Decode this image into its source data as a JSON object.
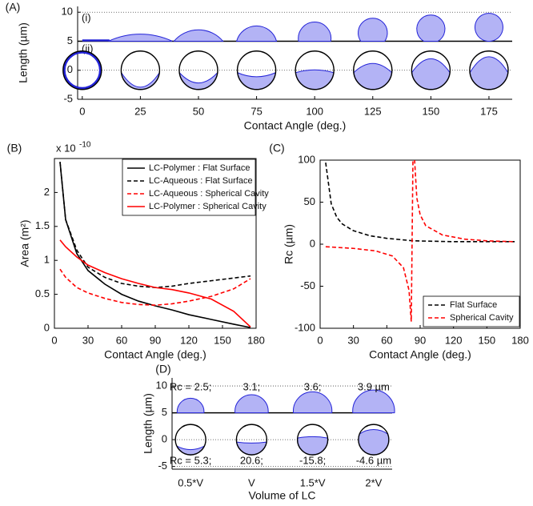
{
  "chart_data": [
    {
      "panel": "(A)",
      "type": "schematic",
      "x_label": "Contact Angle (deg.)",
      "y_label": "Length (µm)",
      "row_labels": [
        "(i)",
        "(ii)"
      ],
      "xticks": [
        0,
        25,
        50,
        75,
        100,
        125,
        150,
        175
      ],
      "xlim": [
        -2,
        185
      ],
      "ylim": [
        -5,
        11
      ],
      "yticks": [
        -5,
        0,
        5,
        10
      ],
      "grid": true,
      "color": "#b3b3f5",
      "edge_color": "#2323d8"
    },
    {
      "panel": "(B)",
      "type": "line",
      "x_label": "Contact Angle (deg.)",
      "y_label": "Area (m²)",
      "y_multiplier": "x 10",
      "y_multiplier_exponent": "-10",
      "x": [
        5,
        10,
        20,
        30,
        45,
        60,
        75,
        90,
        105,
        120,
        140,
        160,
        175
      ],
      "xlim": [
        0,
        180
      ],
      "xticks": [
        0,
        30,
        60,
        90,
        120,
        150,
        180
      ],
      "ylim": [
        0,
        2.5
      ],
      "yticks": [
        0,
        0.5,
        1,
        1.5,
        2
      ],
      "legend": "upper right",
      "series": [
        {
          "name": "LC-Polymer : Flat Surface",
          "color": "#000000",
          "style": "solid",
          "values": [
            2.45,
            1.6,
            1.1,
            0.85,
            0.65,
            0.5,
            0.4,
            0.33,
            0.27,
            0.2,
            0.13,
            0.06,
            0.01
          ]
        },
        {
          "name": "LC-Aqueous : Flat Surface",
          "color": "#000000",
          "style": "dashed",
          "values": [
            2.45,
            1.6,
            1.15,
            0.9,
            0.75,
            0.66,
            0.62,
            0.6,
            0.62,
            0.66,
            0.7,
            0.74,
            0.77
          ]
        },
        {
          "name": "LC-Aqueous : Spherical Cavity",
          "color": "#ff0000",
          "style": "dashed",
          "values": [
            0.87,
            0.75,
            0.6,
            0.52,
            0.44,
            0.38,
            0.35,
            0.34,
            0.36,
            0.4,
            0.47,
            0.58,
            0.73
          ]
        },
        {
          "name": "LC-Polymer : Spherical Cavity",
          "color": "#ff0000",
          "style": "solid",
          "values": [
            1.3,
            1.2,
            1.05,
            0.93,
            0.82,
            0.73,
            0.66,
            0.6,
            0.57,
            0.52,
            0.43,
            0.25,
            0.02
          ]
        }
      ]
    },
    {
      "panel": "(C)",
      "type": "line",
      "x_label": "Contact Angle (deg.)",
      "y_label": "Rc (µm)",
      "xlim": [
        0,
        180
      ],
      "xticks": [
        0,
        30,
        60,
        90,
        120,
        150,
        180
      ],
      "ylim": [
        -100,
        100
      ],
      "yticks": [
        -100,
        -50,
        0,
        50,
        100
      ],
      "legend": "lower right",
      "series": [
        {
          "name": "Flat Surface",
          "color": "#000000",
          "style": "dashed",
          "x": [
            5,
            10,
            15,
            20,
            30,
            45,
            60,
            84,
            120,
            150,
            175
          ],
          "values": [
            97,
            48,
            32,
            24,
            16,
            10,
            7,
            4,
            3,
            3,
            3
          ]
        },
        {
          "name": "Spherical Cavity",
          "color": "#ff0000",
          "style": "dashed",
          "x": [
            5,
            30,
            50,
            65,
            75,
            80,
            82,
            83.5,
            85,
            87,
            90,
            95,
            110,
            130,
            150,
            175
          ],
          "values": [
            -3,
            -5,
            -8,
            -14,
            -28,
            -55,
            -92,
            100,
            100,
            55,
            35,
            22,
            11,
            6,
            4,
            3
          ]
        }
      ]
    },
    {
      "panel": "(D)",
      "type": "schematic",
      "x_label": "Volume of LC",
      "y_label": "Length (µm)",
      "categories": [
        "0.5*V",
        "V",
        "1.5*V",
        "2*V"
      ],
      "ylim": [
        -5.5,
        11.5
      ],
      "yticks": [
        -5,
        0,
        5,
        10
      ],
      "grid": true,
      "top_rc": [
        2.5,
        3.1,
        3.6,
        3.9
      ],
      "top_rc_labels": [
        "Rc = 2.5;",
        "3.1;",
        "3.6;",
        "3.9 µm"
      ],
      "bottom_rc": [
        5.3,
        20.6,
        -15.8,
        -4.6
      ],
      "bottom_rc_labels": [
        "Rc = 5.3;",
        "20.6;",
        "-15.8;",
        "-4.6 µm"
      ],
      "color": "#b3b3f5",
      "edge_color": "#2323d8"
    }
  ]
}
